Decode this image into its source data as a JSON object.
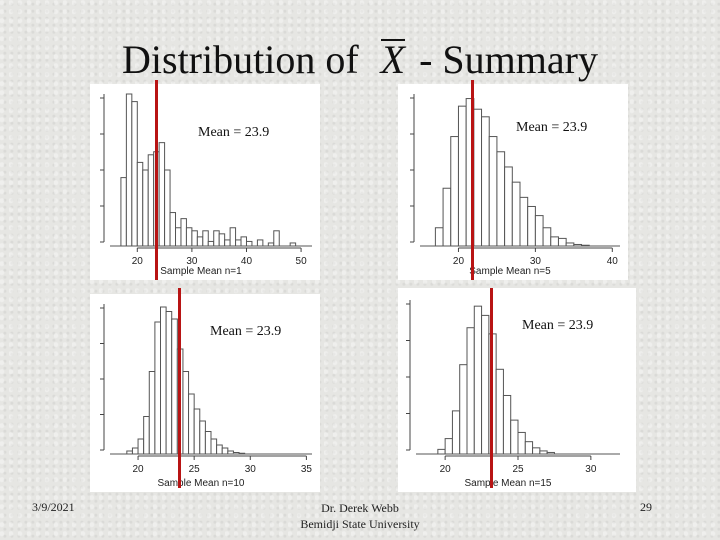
{
  "slide": {
    "title_prefix": "Distribution of",
    "title_symbol": "X",
    "title_suffix": "- Summary",
    "date": "3/9/2021",
    "author": "Dr. Derek Webb",
    "institution": "Bemidji State University",
    "page_number": "29"
  },
  "colors": {
    "mean_line": "#b81414",
    "bars": "#555555"
  },
  "chart_data": [
    {
      "type": "bar",
      "panel": "top-left",
      "annotation": "Mean = 23.9",
      "xlabel": "Sample Mean",
      "n_label": "n=1",
      "ticks": [
        "20",
        "30",
        "40",
        "50"
      ],
      "xlim": [
        15,
        52
      ],
      "bin_width": 1,
      "bins_start": 17,
      "values": [
        0.45,
        1,
        0.95,
        0.55,
        0.5,
        0.6,
        0.62,
        0.68,
        0.5,
        0.22,
        0.12,
        0.18,
        0.12,
        0.1,
        0.06,
        0.1,
        0.03,
        0.1,
        0.08,
        0.04,
        0.12,
        0.04,
        0.06,
        0.03,
        0.0,
        0.04,
        0.0,
        0.02,
        0.1,
        0.0,
        0.0,
        0.02,
        0.0,
        0.0
      ],
      "mean": 23.9
    },
    {
      "type": "bar",
      "panel": "top-right",
      "annotation": "Mean = 23.9",
      "xlabel": "Sample Mean",
      "n_label": "n=5",
      "ticks": [
        "20",
        "30",
        "40"
      ],
      "xlim": [
        15,
        41
      ],
      "bin_width": 1,
      "bins_start": 16,
      "values": [
        0.0,
        0.12,
        0.38,
        0.72,
        0.92,
        0.97,
        0.9,
        0.85,
        0.72,
        0.62,
        0.52,
        0.42,
        0.32,
        0.26,
        0.2,
        0.12,
        0.06,
        0.05,
        0.02,
        0.01,
        0.005
      ],
      "mean": 23.9
    },
    {
      "type": "bar",
      "panel": "bottom-left",
      "annotation": "Mean = 23.9",
      "xlabel": "Sample Mean",
      "n_label": "n=10",
      "ticks": [
        "20",
        "25",
        "30",
        "35"
      ],
      "xlim": [
        17.5,
        35.5
      ],
      "bin_width": 0.5,
      "bins_start": 19,
      "values": [
        0.02,
        0.04,
        0.1,
        0.25,
        0.55,
        0.88,
        0.98,
        0.95,
        0.9,
        0.7,
        0.55,
        0.4,
        0.3,
        0.22,
        0.15,
        0.1,
        0.06,
        0.04,
        0.02,
        0.01,
        0.005,
        0.003
      ],
      "mean": 23.9
    },
    {
      "type": "bar",
      "panel": "bottom-right",
      "annotation": "Mean = 23.9",
      "xlabel": "Sample Mean",
      "n_label": "n=15",
      "ticks": [
        "20",
        "25",
        "30"
      ],
      "xlim": [
        18,
        32
      ],
      "bin_width": 0.5,
      "bins_start": 19.5,
      "values": [
        0.03,
        0.1,
        0.28,
        0.58,
        0.82,
        0.96,
        0.9,
        0.78,
        0.55,
        0.38,
        0.22,
        0.14,
        0.08,
        0.04,
        0.02,
        0.01
      ],
      "mean": 23.9
    }
  ]
}
